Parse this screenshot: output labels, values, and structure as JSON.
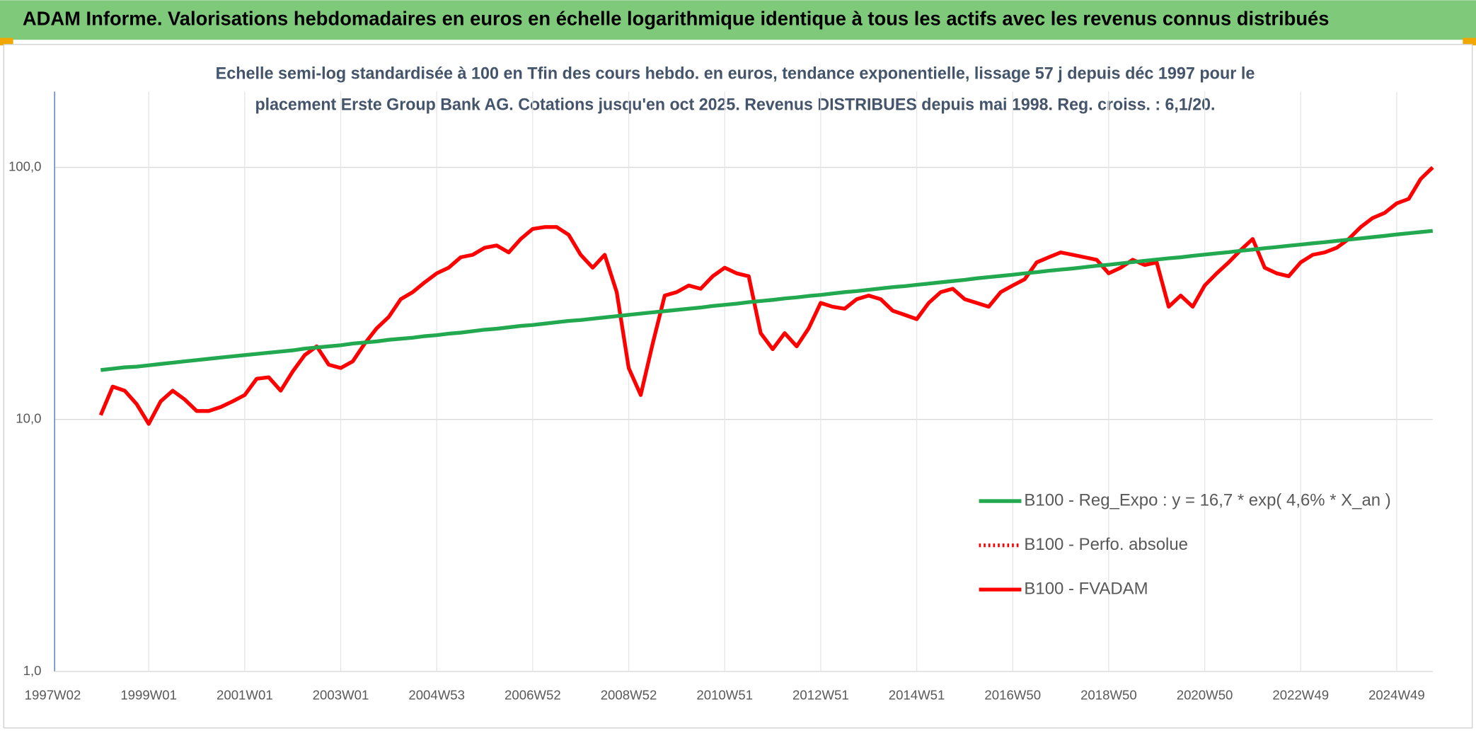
{
  "chart_data": {
    "type": "line",
    "title": "ADAM Informe. Valorisations hebdomadaires en euros en échelle logarithmique identique à tous les actifs avec les revenus connus distribués",
    "subtitle": [
      "Echelle semi-log standardisée à 100 en Tfin des cours hebdo. en euros, tendance exponentielle, lissage 57 j depuis déc 1997 pour le",
      "placement Erste Group Bank AG. Cotations jusqu'en oct 2025. Revenus DISTRIBUES depuis mai 1998. Reg. croiss. : 6,1/20."
    ],
    "x": [
      "1997W02",
      "1997W15",
      "1997W28",
      "1997W41",
      "1998W02",
      "1998W15",
      "1998W28",
      "1998W41",
      "1999W01",
      "1999W14",
      "1999W27",
      "1999W40",
      "2000W01",
      "2000W14",
      "2000W27",
      "2000W40",
      "2001W01",
      "2001W14",
      "2001W27",
      "2001W40",
      "2002W01",
      "2002W14",
      "2002W27",
      "2002W40",
      "2003W01",
      "2003W14",
      "2003W27",
      "2003W40",
      "2004W01",
      "2004W14",
      "2004W27",
      "2004W40",
      "2004W53",
      "2005W13",
      "2005W26",
      "2005W39",
      "2005W52",
      "2006W13",
      "2006W26",
      "2006W39",
      "2006W52",
      "2007W13",
      "2007W26",
      "2007W39",
      "2007W52",
      "2008W13",
      "2008W26",
      "2008W39",
      "2008W52",
      "2009W13",
      "2009W26",
      "2009W39",
      "2009W52",
      "2010W12",
      "2010W25",
      "2010W38",
      "2010W51",
      "2011W12",
      "2011W25",
      "2011W38",
      "2011W51",
      "2012W12",
      "2012W25",
      "2012W38",
      "2012W51",
      "2013W12",
      "2013W25",
      "2013W38",
      "2013W51",
      "2014W12",
      "2014W25",
      "2014W38",
      "2014W51",
      "2015W12",
      "2015W25",
      "2015W38",
      "2015W51",
      "2016W11",
      "2016W24",
      "2016W37",
      "2016W50",
      "2017W11",
      "2017W24",
      "2017W37",
      "2017W50",
      "2018W11",
      "2018W24",
      "2018W37",
      "2018W50",
      "2019W11",
      "2019W24",
      "2019W37",
      "2019W50",
      "2020W11",
      "2020W24",
      "2020W37",
      "2020W50",
      "2021W10",
      "2021W23",
      "2021W36",
      "2021W49",
      "2022W10",
      "2022W23",
      "2022W36",
      "2022W49",
      "2023W10",
      "2023W23",
      "2023W36",
      "2023W49",
      "2024W10",
      "2024W23",
      "2024W36",
      "2024W49",
      "2025W10",
      "2025W23",
      "2025W36"
    ],
    "xticks": [
      "1997W02",
      "1999W01",
      "2001W01",
      "2003W01",
      "2004W53",
      "2006W52",
      "2008W52",
      "2010W51",
      "2012W51",
      "2014W51",
      "2016W50",
      "2018W50",
      "2020W50",
      "2022W49",
      "2024W49"
    ],
    "ylim": [
      1,
      200
    ],
    "yticks": [
      {
        "value": 1,
        "label": "1,0"
      },
      {
        "value": 10,
        "label": "10,0"
      },
      {
        "value": 100,
        "label": "100,0"
      }
    ],
    "log_y": true,
    "grid": true,
    "legend": "lower right",
    "series": [
      {
        "name": "B100 - Reg_Expo : y = 16,7 * exp( 4,6% *  X_an )",
        "color": "#22a94f",
        "style": "solid",
        "values": [
          null,
          null,
          null,
          null,
          15.7,
          15.9,
          16.1,
          16.2,
          16.4,
          16.6,
          16.8,
          17.0,
          17.2,
          17.4,
          17.6,
          17.8,
          18.0,
          18.2,
          18.4,
          18.6,
          18.8,
          19.1,
          19.3,
          19.5,
          19.7,
          20.0,
          20.2,
          20.4,
          20.7,
          20.9,
          21.1,
          21.4,
          21.6,
          21.9,
          22.1,
          22.4,
          22.7,
          22.9,
          23.2,
          23.5,
          23.7,
          24.0,
          24.3,
          24.6,
          24.8,
          25.1,
          25.4,
          25.7,
          26.0,
          26.3,
          26.6,
          26.9,
          27.2,
          27.5,
          27.8,
          28.2,
          28.5,
          28.8,
          29.2,
          29.5,
          29.8,
          30.2,
          30.5,
          30.9,
          31.2,
          31.6,
          32.0,
          32.3,
          32.7,
          33.1,
          33.5,
          33.8,
          34.2,
          34.6,
          35.0,
          35.4,
          35.8,
          36.3,
          36.7,
          37.1,
          37.5,
          38.0,
          38.4,
          38.9,
          39.3,
          39.7,
          40.2,
          40.7,
          41.1,
          41.6,
          42.1,
          42.6,
          43.1,
          43.6,
          44.0,
          44.6,
          45.1,
          45.6,
          46.1,
          46.7,
          47.2,
          47.8,
          48.3,
          48.9,
          49.4,
          50.0,
          50.5,
          51.1,
          51.7,
          52.3,
          52.9,
          53.5,
          54.2,
          54.8,
          55.4,
          56.0
        ]
      },
      {
        "name": "B100 - Perfo. absolue",
        "color": "#ff0000",
        "style": "dotted",
        "values": [
          null,
          null,
          null,
          null,
          null,
          null,
          null,
          null,
          null,
          null,
          null,
          null,
          null,
          null,
          null,
          null,
          null,
          null,
          null,
          null,
          null,
          null,
          null,
          null,
          null,
          null,
          null,
          null,
          null,
          null,
          null,
          null,
          null,
          null,
          null,
          null,
          null,
          null,
          null,
          null,
          null,
          null,
          null,
          null,
          null,
          null,
          null,
          null,
          null,
          null,
          null,
          null,
          null,
          null,
          null,
          null,
          null,
          null,
          null,
          null,
          null,
          null,
          null,
          null,
          null,
          null,
          null,
          null,
          null,
          null,
          null,
          null,
          null,
          null,
          null,
          null,
          null,
          null,
          null,
          null,
          null,
          null,
          null,
          null,
          null,
          null,
          null,
          null,
          null,
          null,
          null,
          null,
          null,
          null,
          null,
          null,
          null,
          null,
          null,
          null,
          null,
          null,
          null,
          null,
          null,
          null,
          null,
          null,
          null,
          null,
          null,
          null,
          null,
          null,
          null,
          null
        ]
      },
      {
        "name": "B100 - FVADAM",
        "color": "#ff0000",
        "style": "solid",
        "values": [
          null,
          null,
          null,
          null,
          10.4,
          13.5,
          13.0,
          11.5,
          9.6,
          11.8,
          13.0,
          12.0,
          10.8,
          10.8,
          11.2,
          11.8,
          12.5,
          14.5,
          14.7,
          13.0,
          15.5,
          18.0,
          19.5,
          16.5,
          16.0,
          17.0,
          20.0,
          23.0,
          25.5,
          30.0,
          32.0,
          35.0,
          38.0,
          40.0,
          44.0,
          45.0,
          48.0,
          49.0,
          46.0,
          52.0,
          57.0,
          58.0,
          58.0,
          54.0,
          45.0,
          40.0,
          45.0,
          32.0,
          16.0,
          12.5,
          20.0,
          31.0,
          32.0,
          34.0,
          33.0,
          37.0,
          40.0,
          38.0,
          37.0,
          22.0,
          19.0,
          22.0,
          19.5,
          23.0,
          29.0,
          28.0,
          27.5,
          30.0,
          31.0,
          30.0,
          27.0,
          26.0,
          25.0,
          29.0,
          32.0,
          33.0,
          30.0,
          29.0,
          28.0,
          32.0,
          34.0,
          36.0,
          42.0,
          44.0,
          46.0,
          45.0,
          44.0,
          43.0,
          38.0,
          40.0,
          43.0,
          41.0,
          42.0,
          28.0,
          31.0,
          28.0,
          34.0,
          38.0,
          42.0,
          47.0,
          52.0,
          40.0,
          38.0,
          37.0,
          42.0,
          45.0,
          46.0,
          48.0,
          52.0,
          58.0,
          63.0,
          66.0,
          72.0,
          75.0,
          90.0,
          100.0
        ]
      }
    ]
  }
}
